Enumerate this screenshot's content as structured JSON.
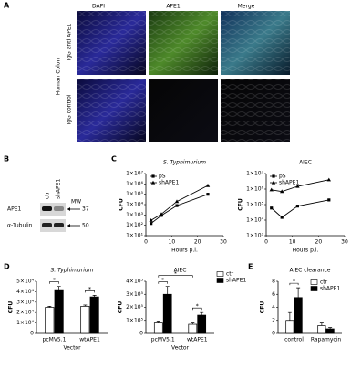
{
  "panel_a": {
    "label": "A",
    "columns": [
      "DAPI",
      "APE1",
      "Merge"
    ],
    "tissue": "Human Colon",
    "rows": [
      "IgG anti APE1",
      "IgG control"
    ]
  },
  "panel_b": {
    "label": "B",
    "lanes": [
      "ctr",
      "shAPE1"
    ],
    "mw_title": "MW",
    "bands": [
      {
        "name": "APE1",
        "mw": "37"
      },
      {
        "name": "α-Tubulin",
        "mw": "50"
      }
    ]
  },
  "panel_labels": [
    "C",
    "D",
    "E"
  ],
  "chart_data": [
    {
      "type": "line",
      "title": "S. Typhimurium",
      "title_italic": true,
      "xlabel": "Hours p.i.",
      "ylabel": "CFU",
      "x": [
        2,
        6,
        12,
        24
      ],
      "xlim": [
        0,
        30
      ],
      "xticks": [
        0,
        10,
        20,
        30
      ],
      "log_y": true,
      "ylim": [
        10,
        10000000
      ],
      "yticks": [
        {
          "value": 10,
          "label": "1×10¹"
        },
        {
          "value": 100,
          "label": "1×10²"
        },
        {
          "value": 1000,
          "label": "1×10³"
        },
        {
          "value": 10000,
          "label": "1×10⁴"
        },
        {
          "value": 100000,
          "label": "1×10⁵"
        },
        {
          "value": 1000000,
          "label": "1×10⁶"
        },
        {
          "value": 10000000,
          "label": "1×10⁷"
        }
      ],
      "legend": "upper left",
      "series": [
        {
          "name": "pS",
          "color": "#000000",
          "marker": "square",
          "values": [
            150,
            900,
            8000,
            100000
          ]
        },
        {
          "name": "shAPE1",
          "color": "#000000",
          "marker": "triangle",
          "values": [
            300,
            1200,
            20000,
            700000
          ]
        }
      ]
    },
    {
      "type": "line",
      "title": "AIEC",
      "title_italic": false,
      "xlabel": "Hours p.i.",
      "ylabel": "CFU",
      "x": [
        2,
        6,
        12,
        24
      ],
      "xlim": [
        0,
        30
      ],
      "xticks": [
        0,
        10,
        20,
        30
      ],
      "log_y": true,
      "ylim": [
        1000,
        10000000
      ],
      "yticks": [
        {
          "value": 1000,
          "label": "1×10³"
        },
        {
          "value": 10000,
          "label": "1×10⁴"
        },
        {
          "value": 100000,
          "label": "1×10⁵"
        },
        {
          "value": 1000000,
          "label": "1×10⁶"
        },
        {
          "value": 10000000,
          "label": "1×10⁷"
        }
      ],
      "legend": "upper left",
      "series": [
        {
          "name": "pS",
          "color": "#000000",
          "marker": "square",
          "values": [
            60000,
            15000,
            80000,
            200000
          ]
        },
        {
          "name": "shAPE1",
          "color": "#000000",
          "marker": "triangle",
          "values": [
            900000,
            700000,
            1500000,
            4000000
          ]
        }
      ]
    },
    {
      "type": "bar",
      "title": "S. Typhimurium",
      "title_italic": true,
      "xlabel": "Vector",
      "ylabel": "CFU",
      "categories": [
        "pcMV5.1",
        "wtAPE1"
      ],
      "ylim": [
        0,
        50000
      ],
      "yticks": [
        0,
        {
          "value": 10000,
          "label": "1×10⁴"
        },
        {
          "value": 20000,
          "label": "2×10⁴"
        },
        {
          "value": 30000,
          "label": "3×10⁴"
        },
        {
          "value": 40000,
          "label": "4×10⁴"
        },
        {
          "value": 50000,
          "label": "5×10⁴"
        }
      ],
      "annotations": [
        "*",
        "*"
      ],
      "series": [
        {
          "color": "#ffffff",
          "values": [
            25000,
            26000
          ],
          "errors": [
            1000,
            1200
          ]
        },
        {
          "color": "#000000",
          "values": [
            42000,
            35000
          ],
          "errors": [
            3000,
            1500
          ]
        }
      ]
    },
    {
      "type": "bar",
      "title": "AIEC",
      "title_italic": false,
      "xlabel": "Vector",
      "ylabel": "CFU",
      "categories": [
        "pcMV5.1",
        "wtAPE1"
      ],
      "ylim": [
        0,
        400000
      ],
      "yticks": [
        0,
        {
          "value": 100000,
          "label": "1×10⁵"
        },
        {
          "value": 200000,
          "label": "2×10⁵"
        },
        {
          "value": 300000,
          "label": "3×10⁵"
        },
        {
          "value": 400000,
          "label": "4×10⁵"
        }
      ],
      "legend": "outside right",
      "annotations": [
        "*",
        "*",
        "*"
      ],
      "series": [
        {
          "name": "ctr",
          "color": "#ffffff",
          "values": [
            80000,
            70000
          ],
          "errors": [
            15000,
            10000
          ]
        },
        {
          "name": "shAPE1",
          "color": "#000000",
          "values": [
            300000,
            140000
          ],
          "errors": [
            60000,
            20000
          ]
        }
      ]
    },
    {
      "type": "bar",
      "title": "AIEC clearance",
      "title_italic": false,
      "ylabel": "CFU",
      "categories": [
        "control",
        "Rapamycin"
      ],
      "ylim": [
        0,
        8
      ],
      "yticks": [
        0,
        2,
        4,
        6,
        8
      ],
      "legend": "upper right",
      "annotations": [
        "*"
      ],
      "series": [
        {
          "name": "ctr",
          "color": "#ffffff",
          "values": [
            2,
            1.2
          ],
          "errors": [
            1.2,
            0.4
          ]
        },
        {
          "name": "shAPE1",
          "color": "#000000",
          "values": [
            5.5,
            0.7
          ],
          "errors": [
            1.5,
            0.2
          ]
        }
      ]
    }
  ]
}
